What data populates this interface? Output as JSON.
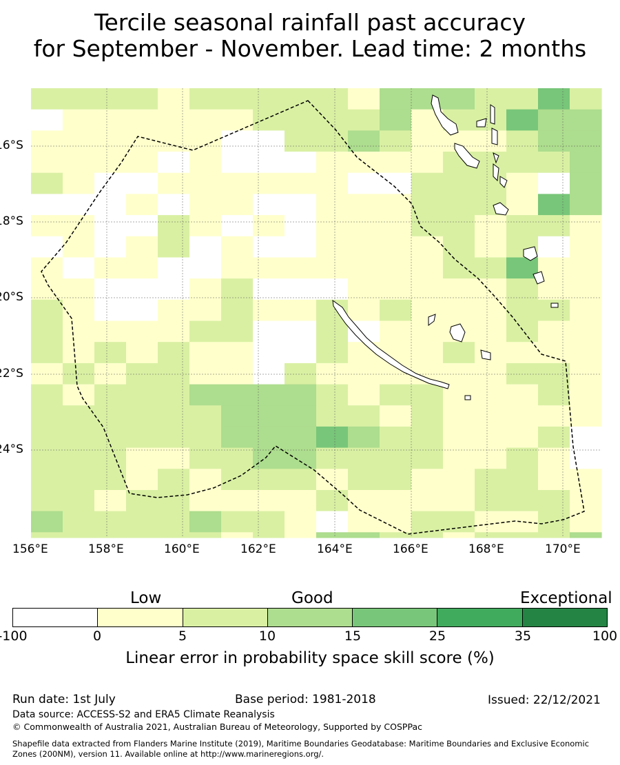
{
  "title_line1": "Tercile seasonal rainfall past accuracy",
  "title_line2": "for September - November. Lead time: 2 months",
  "lon_ticks": [
    "156°E",
    "158°E",
    "160°E",
    "162°E",
    "164°E",
    "166°E",
    "168°E",
    "170°E"
  ],
  "lat_ticks": [
    "16°S",
    "18°S",
    "20°S",
    "22°S",
    "24°S"
  ],
  "categories": {
    "low": "Low",
    "good": "Good",
    "exceptional": "Exceptional"
  },
  "colorbar": {
    "labels": [
      "-100",
      "0",
      "5",
      "10",
      "15",
      "25",
      "35",
      "100"
    ],
    "colors": [
      "#ffffff",
      "#ffffcc",
      "#d9f0a3",
      "#addd8e",
      "#78c679",
      "#41ab5d",
      "#238443"
    ],
    "title": "Linear error in probability space skill score (%)"
  },
  "footer": {
    "run_date": "Run date: 1st July",
    "base_period": "Base period: 1981-2018",
    "issued": "Issued: 22/12/2021",
    "data_source": "Data source: ACCESS-S2 and ERA5 Climate Reanalysis",
    "copyright": "© Commonwealth of Australia 2021, Australian Bureau of Meteorology, Supported by COSPPac",
    "shapefile_line1": "Shapefile data extracted from Flanders Marine Institute (2019), Maritime Boundaries Geodatabase: Maritime Boundaries and Exclusive Economic",
    "shapefile_line2": "Zones (200NM), version 11. Available online at http://www.marineregions.org/."
  }
}
